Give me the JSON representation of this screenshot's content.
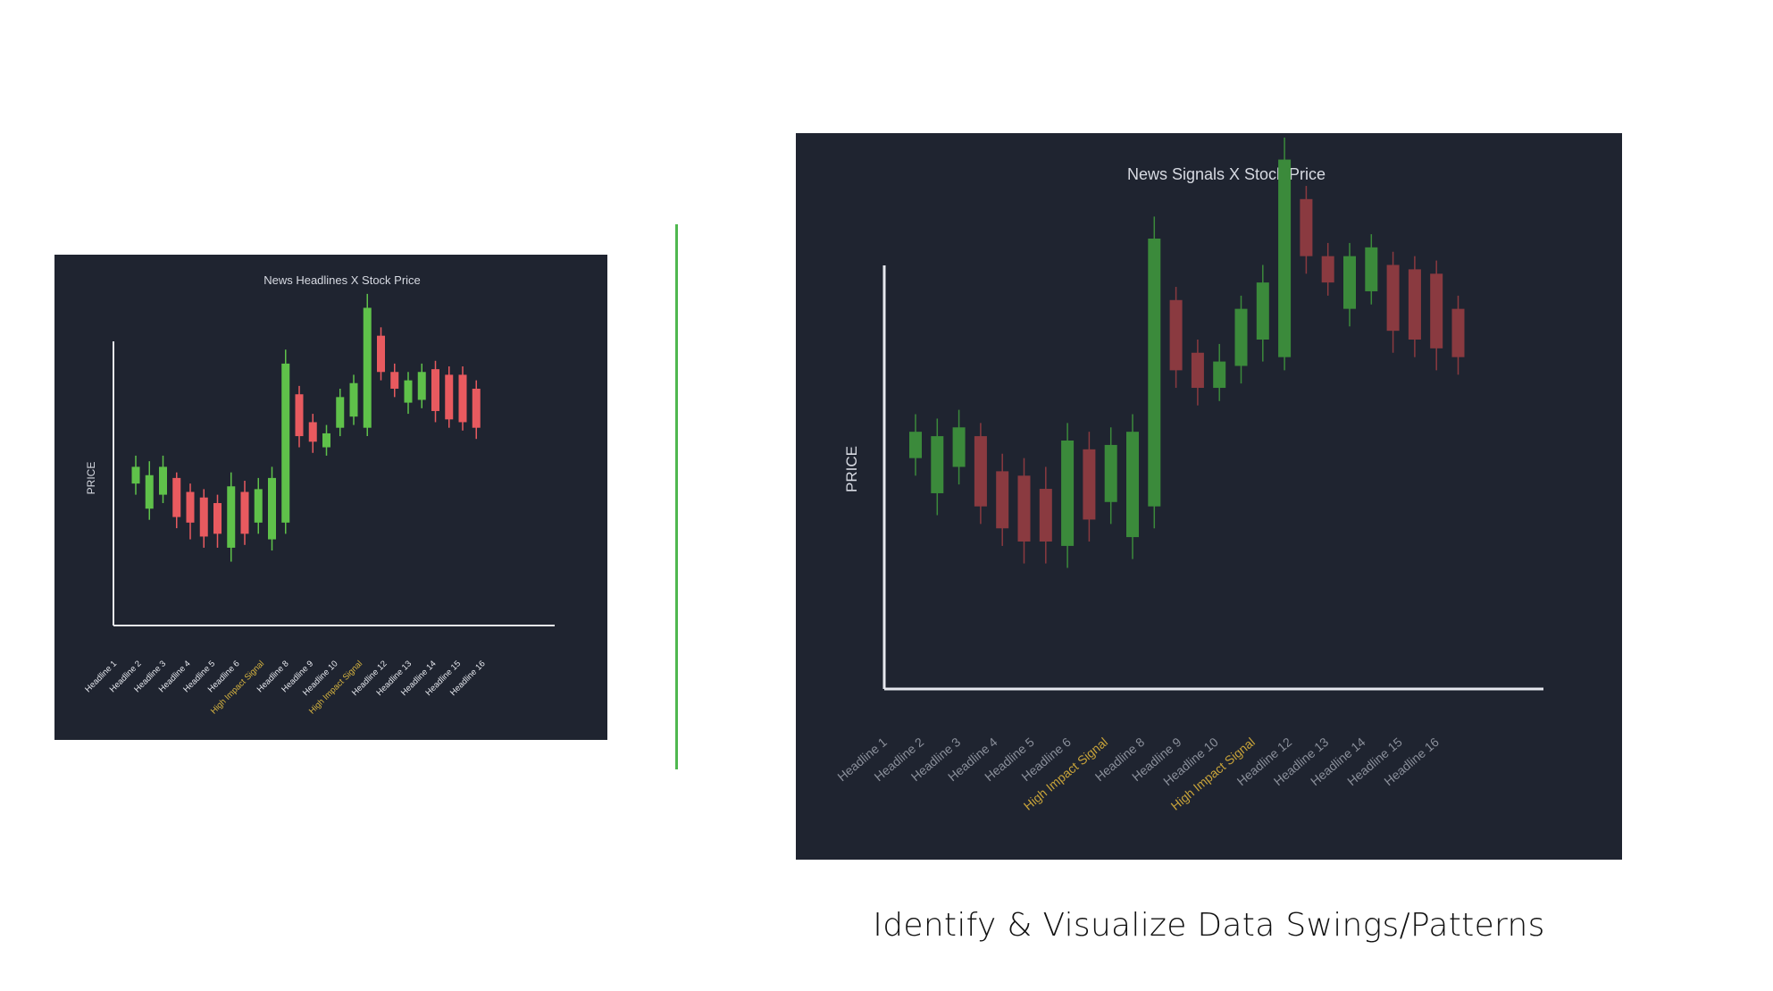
{
  "caption": "Identify & Visualize Data Swings/Patterns",
  "colors": {
    "panel_bg": "#1f2430",
    "up_bright": "#5fc14a",
    "down_bright": "#e85a5f",
    "up_dim": "#3b8a3b",
    "down_dim": "#8a3a40",
    "highlight_bright": "#d9b640",
    "highlight_dim": "#c9a43a",
    "divider": "#4fb84f"
  },
  "chart_data": [
    {
      "type": "candlestick",
      "title": "News Headlines X Stock Price",
      "ylabel": "PRICE",
      "categories": [
        "Headline 1",
        "Headline 2",
        "Headline 3",
        "Headline 4",
        "Headline 5",
        "Headline 6",
        "High Impact Signal",
        "Headline 8",
        "Headline 9",
        "Headline 10",
        "High Impact Signal",
        "Headline 12",
        "Headline 13",
        "Headline 14",
        "Headline 15",
        "Headline 16"
      ],
      "highlighted_categories": [
        6,
        10
      ],
      "ylim": [
        0,
        100
      ],
      "candles": [
        {
          "open": 40,
          "close": 46,
          "high": 50,
          "low": 36,
          "dir": "up"
        },
        {
          "open": 31,
          "close": 43,
          "high": 48,
          "low": 27,
          "dir": "up"
        },
        {
          "open": 36,
          "close": 46,
          "high": 50,
          "low": 33,
          "dir": "up"
        },
        {
          "open": 42,
          "close": 28,
          "high": 44,
          "low": 24,
          "dir": "down"
        },
        {
          "open": 37,
          "close": 26,
          "high": 40,
          "low": 20,
          "dir": "down"
        },
        {
          "open": 35,
          "close": 21,
          "high": 38,
          "low": 17,
          "dir": "down"
        },
        {
          "open": 33,
          "close": 22,
          "high": 36,
          "low": 17,
          "dir": "down"
        },
        {
          "open": 17,
          "close": 39,
          "high": 44,
          "low": 12,
          "dir": "up"
        },
        {
          "open": 37,
          "close": 22,
          "high": 41,
          "low": 18,
          "dir": "down"
        },
        {
          "open": 26,
          "close": 38,
          "high": 42,
          "low": 22,
          "dir": "up"
        },
        {
          "open": 20,
          "close": 42,
          "high": 46,
          "low": 16,
          "dir": "up"
        },
        {
          "open": 26,
          "close": 83,
          "high": 88,
          "low": 22,
          "dir": "up"
        },
        {
          "open": 72,
          "close": 57,
          "high": 75,
          "low": 53,
          "dir": "down"
        },
        {
          "open": 62,
          "close": 55,
          "high": 65,
          "low": 51,
          "dir": "down"
        },
        {
          "open": 53,
          "close": 58,
          "high": 61,
          "low": 50,
          "dir": "up"
        },
        {
          "open": 60,
          "close": 71,
          "high": 74,
          "low": 57,
          "dir": "up"
        },
        {
          "open": 64,
          "close": 76,
          "high": 79,
          "low": 61,
          "dir": "up"
        },
        {
          "open": 60,
          "close": 103,
          "high": 108,
          "low": 57,
          "dir": "up"
        },
        {
          "open": 93,
          "close": 80,
          "high": 96,
          "low": 77,
          "dir": "down"
        },
        {
          "open": 80,
          "close": 74,
          "high": 83,
          "low": 71,
          "dir": "down"
        },
        {
          "open": 69,
          "close": 77,
          "high": 80,
          "low": 65,
          "dir": "up"
        },
        {
          "open": 70,
          "close": 80,
          "high": 83,
          "low": 67,
          "dir": "up"
        },
        {
          "open": 81,
          "close": 66,
          "high": 84,
          "low": 62,
          "dir": "down"
        },
        {
          "open": 79,
          "close": 63,
          "high": 82,
          "low": 60,
          "dir": "down"
        },
        {
          "open": 79,
          "close": 62,
          "high": 82,
          "low": 59,
          "dir": "down"
        },
        {
          "open": 74,
          "close": 60,
          "high": 77,
          "low": 56,
          "dir": "down"
        }
      ]
    },
    {
      "type": "candlestick",
      "title": "News Signals X Stock Price",
      "ylabel": "PRICE",
      "categories": [
        "Headline 1",
        "Headline 2",
        "Headline 3",
        "Headline 4",
        "Headline 5",
        "Headline 6",
        "High Impact Signal",
        "Headline 8",
        "Headline 9",
        "Headline 10",
        "High Impact Signal",
        "Headline 12",
        "Headline 13",
        "Headline 14",
        "Headline 15",
        "Headline 16"
      ],
      "highlighted_categories": [
        6,
        10
      ],
      "ylim": [
        0,
        100
      ],
      "candles": [
        {
          "open": 42,
          "close": 48,
          "high": 52,
          "low": 38,
          "dir": "up"
        },
        {
          "open": 34,
          "close": 47,
          "high": 51,
          "low": 29,
          "dir": "up"
        },
        {
          "open": 40,
          "close": 49,
          "high": 53,
          "low": 36,
          "dir": "up"
        },
        {
          "open": 47,
          "close": 31,
          "high": 50,
          "low": 27,
          "dir": "down"
        },
        {
          "open": 39,
          "close": 26,
          "high": 43,
          "low": 22,
          "dir": "down"
        },
        {
          "open": 38,
          "close": 23,
          "high": 42,
          "low": 18,
          "dir": "down"
        },
        {
          "open": 35,
          "close": 23,
          "high": 40,
          "low": 18,
          "dir": "down"
        },
        {
          "open": 22,
          "close": 46,
          "high": 50,
          "low": 17,
          "dir": "up"
        },
        {
          "open": 44,
          "close": 28,
          "high": 48,
          "low": 23,
          "dir": "down"
        },
        {
          "open": 32,
          "close": 45,
          "high": 49,
          "low": 27,
          "dir": "up"
        },
        {
          "open": 24,
          "close": 48,
          "high": 52,
          "low": 19,
          "dir": "up"
        },
        {
          "open": 31,
          "close": 92,
          "high": 97,
          "low": 26,
          "dir": "up"
        },
        {
          "open": 78,
          "close": 62,
          "high": 81,
          "low": 58,
          "dir": "down"
        },
        {
          "open": 66,
          "close": 58,
          "high": 69,
          "low": 54,
          "dir": "down"
        },
        {
          "open": 58,
          "close": 64,
          "high": 68,
          "low": 55,
          "dir": "up"
        },
        {
          "open": 63,
          "close": 76,
          "high": 79,
          "low": 59,
          "dir": "up"
        },
        {
          "open": 69,
          "close": 82,
          "high": 86,
          "low": 64,
          "dir": "up"
        },
        {
          "open": 65,
          "close": 110,
          "high": 115,
          "low": 62,
          "dir": "up"
        },
        {
          "open": 101,
          "close": 88,
          "high": 104,
          "low": 84,
          "dir": "down"
        },
        {
          "open": 88,
          "close": 82,
          "high": 91,
          "low": 79,
          "dir": "down"
        },
        {
          "open": 76,
          "close": 88,
          "high": 91,
          "low": 72,
          "dir": "up"
        },
        {
          "open": 80,
          "close": 90,
          "high": 93,
          "low": 77,
          "dir": "up"
        },
        {
          "open": 86,
          "close": 71,
          "high": 89,
          "low": 66,
          "dir": "down"
        },
        {
          "open": 85,
          "close": 69,
          "high": 88,
          "low": 65,
          "dir": "down"
        },
        {
          "open": 84,
          "close": 67,
          "high": 87,
          "low": 62,
          "dir": "down"
        },
        {
          "open": 76,
          "close": 65,
          "high": 79,
          "low": 61,
          "dir": "down"
        }
      ]
    }
  ]
}
